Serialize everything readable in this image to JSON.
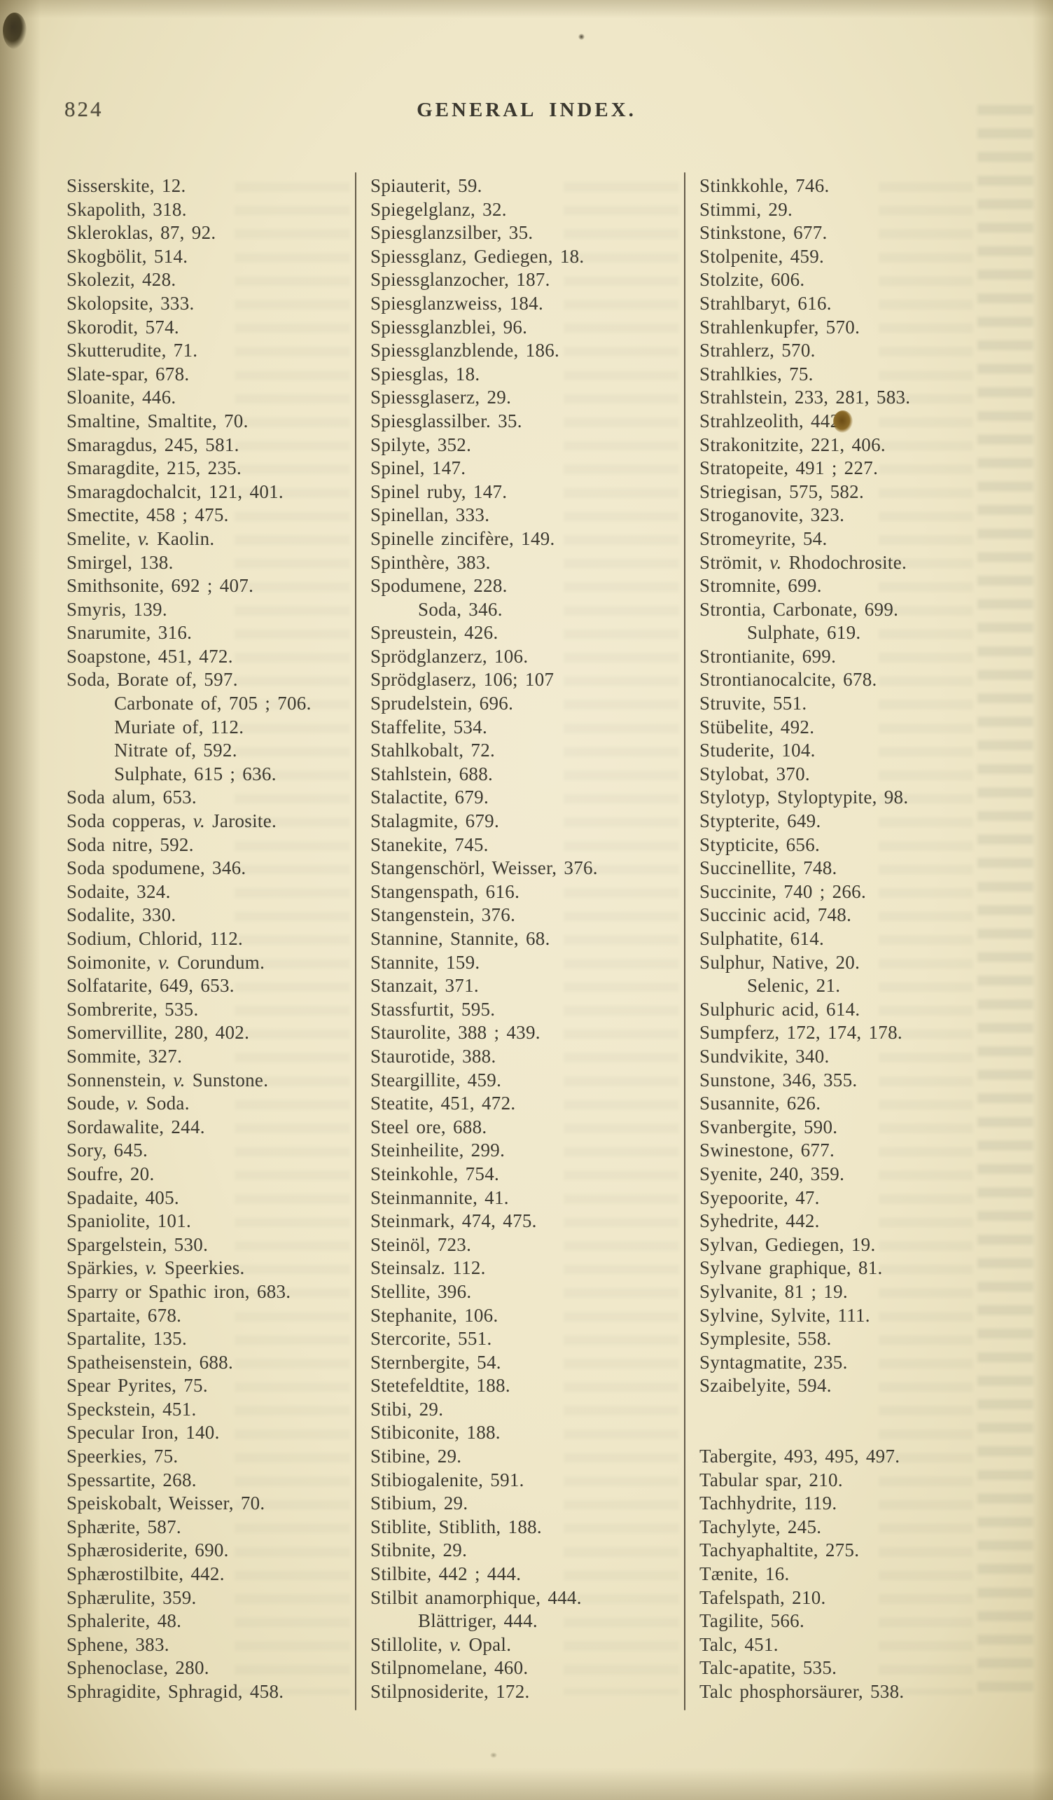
{
  "page": {
    "number": "824",
    "header": "GENERAL INDEX."
  },
  "columns": [
    {
      "entries": [
        {
          "t": "Sisserskite, 12."
        },
        {
          "t": "Skapolith, 318."
        },
        {
          "t": "Skleroklas, 87, 92."
        },
        {
          "t": "Skogbölit, 514."
        },
        {
          "t": "Skolezit, 428."
        },
        {
          "t": "Skolopsite, 333."
        },
        {
          "t": "Skorodit, 574."
        },
        {
          "t": "Skutterudite, 71."
        },
        {
          "t": "Slate-spar, 678."
        },
        {
          "t": "Sloanite, 446."
        },
        {
          "t": "Smaltine, Smaltite, 70."
        },
        {
          "t": "Smaragdus, 245, 581."
        },
        {
          "t": "Smaragdite, 215, 235."
        },
        {
          "t": "Smaragdochalcit, 121, 401."
        },
        {
          "t": "Smectite, 458 ; 475."
        },
        {
          "t": "Smelite, v. Kaolin."
        },
        {
          "t": "Smirgel, 138."
        },
        {
          "t": "Smithsonite, 692 ; 407."
        },
        {
          "t": "Smyris, 139."
        },
        {
          "t": "Snarumite, 316."
        },
        {
          "t": "Soapstone, 451, 472."
        },
        {
          "t": "Soda, Borate of, 597."
        },
        {
          "t": "Carbonate of, 705 ; 706.",
          "ind": 1
        },
        {
          "t": "Muriate of, 112.",
          "ind": 1
        },
        {
          "t": "Nitrate of, 592.",
          "ind": 1
        },
        {
          "t": "Sulphate, 615 ; 636.",
          "ind": 1
        },
        {
          "t": "Soda alum, 653."
        },
        {
          "t": "Soda copperas, v. Jarosite."
        },
        {
          "t": "Soda nitre, 592."
        },
        {
          "t": "Soda spodumene, 346."
        },
        {
          "t": "Sodaite, 324."
        },
        {
          "t": "Sodalite, 330."
        },
        {
          "t": "Sodium, Chlorid, 112."
        },
        {
          "t": "Soimonite, v. Corundum."
        },
        {
          "t": "Solfatarite, 649, 653."
        },
        {
          "t": "Sombrerite, 535."
        },
        {
          "t": "Somervillite, 280, 402."
        },
        {
          "t": "Sommite, 327."
        },
        {
          "t": "Sonnenstein, v. Sunstone."
        },
        {
          "t": "Soude, v. Soda."
        },
        {
          "t": "Sordawalite, 244."
        },
        {
          "t": "Sory, 645."
        },
        {
          "t": "Soufre, 20."
        },
        {
          "t": "Spadaite, 405."
        },
        {
          "t": "Spaniolite, 101."
        },
        {
          "t": "Spargelstein, 530."
        },
        {
          "t": "Spärkies, v. Speerkies."
        },
        {
          "t": "Sparry or Spathic iron, 683."
        },
        {
          "t": "Spartaite, 678."
        },
        {
          "t": "Spartalite, 135."
        },
        {
          "t": "Spatheisenstein, 688."
        },
        {
          "t": "Spear Pyrites, 75."
        },
        {
          "t": "Speckstein, 451."
        },
        {
          "t": "Specular Iron, 140."
        },
        {
          "t": "Speerkies, 75."
        },
        {
          "t": "Spessartite, 268."
        },
        {
          "t": "Speiskobalt, Weisser, 70."
        },
        {
          "t": "Sphærite, 587."
        },
        {
          "t": "Sphærosiderite, 690."
        },
        {
          "t": "Sphærostilbite, 442."
        },
        {
          "t": "Sphærulite, 359."
        },
        {
          "t": "Sphalerite, 48."
        },
        {
          "t": "Sphene, 383."
        },
        {
          "t": "Sphenoclase, 280."
        },
        {
          "t": "Sphragidite, Sphragid, 458."
        }
      ]
    },
    {
      "entries": [
        {
          "t": "Spiauterit, 59."
        },
        {
          "t": "Spiegelglanz, 32."
        },
        {
          "t": "Spiesglanzsilber, 35."
        },
        {
          "t": "Spiessglanz, Gediegen, 18."
        },
        {
          "t": "Spiessglanzocher, 187."
        },
        {
          "t": "Spiesglanzweiss, 184."
        },
        {
          "t": "Spiessglanzblei, 96."
        },
        {
          "t": "Spiessglanzblende, 186."
        },
        {
          "t": "Spiesglas, 18."
        },
        {
          "t": "Spiessglaserz, 29."
        },
        {
          "t": "Spiesglassilber. 35."
        },
        {
          "t": "Spilyte, 352."
        },
        {
          "t": "Spinel, 147."
        },
        {
          "t": "Spinel ruby, 147."
        },
        {
          "t": "Spinellan, 333."
        },
        {
          "t": "Spinelle zincifère, 149."
        },
        {
          "t": "Spinthère, 383."
        },
        {
          "t": "Spodumene, 228."
        },
        {
          "t": "Soda, 346.",
          "ind": 1
        },
        {
          "t": "Spreustein, 426."
        },
        {
          "t": "Sprödglanzerz, 106."
        },
        {
          "t": "Sprödglaserz, 106; 107"
        },
        {
          "t": "Sprudelstein, 696."
        },
        {
          "t": "Staffelite, 534."
        },
        {
          "t": "Stahlkobalt, 72."
        },
        {
          "t": "Stahlstein, 688."
        },
        {
          "t": "Stalactite, 679."
        },
        {
          "t": "Stalagmite, 679."
        },
        {
          "t": "Stanekite, 745."
        },
        {
          "t": "Stangenschörl, Weisser, 376."
        },
        {
          "t": "Stangenspath, 616."
        },
        {
          "t": "Stangenstein, 376."
        },
        {
          "t": "Stannine, Stannite, 68."
        },
        {
          "t": "Stannite, 159."
        },
        {
          "t": "Stanzait, 371."
        },
        {
          "t": "Stassfurtit, 595."
        },
        {
          "t": "Staurolite, 388 ; 439."
        },
        {
          "t": "Staurotide, 388."
        },
        {
          "t": "Steargillite, 459."
        },
        {
          "t": "Steatite, 451, 472."
        },
        {
          "t": "Steel ore, 688."
        },
        {
          "t": "Steinheilite, 299."
        },
        {
          "t": "Steinkohle, 754."
        },
        {
          "t": "Steinmannite, 41."
        },
        {
          "t": "Steinmark, 474, 475."
        },
        {
          "t": "Steinöl, 723."
        },
        {
          "t": "Steinsalz. 112."
        },
        {
          "t": "Stellite, 396."
        },
        {
          "t": "Stephanite, 106."
        },
        {
          "t": "Stercorite, 551."
        },
        {
          "t": "Sternbergite, 54."
        },
        {
          "t": "Stetefeldtite, 188."
        },
        {
          "t": "Stibi, 29."
        },
        {
          "t": "Stibiconite, 188."
        },
        {
          "t": "Stibine, 29."
        },
        {
          "t": "Stibiogalenite, 591."
        },
        {
          "t": "Stibium, 29."
        },
        {
          "t": "Stiblite, Stiblith, 188."
        },
        {
          "t": "Stibnite, 29."
        },
        {
          "t": "Stilbite, 442 ; 444."
        },
        {
          "t": "Stilbit anamorphique, 444."
        },
        {
          "t": "Blättriger, 444.",
          "ind": 1
        },
        {
          "t": "Stillolite, v. Opal."
        },
        {
          "t": "Stilpnomelane, 460."
        },
        {
          "t": "Stilpnosiderite, 172."
        }
      ]
    },
    {
      "entries": [
        {
          "t": "Stinkkohle, 746."
        },
        {
          "t": "Stimmi, 29."
        },
        {
          "t": "Stinkstone, 677."
        },
        {
          "t": "Stolpenite, 459."
        },
        {
          "t": "Stolzite, 606."
        },
        {
          "t": "Strahlbaryt, 616."
        },
        {
          "t": "Strahlenkupfer, 570."
        },
        {
          "t": "Strahlerz, 570."
        },
        {
          "t": "Strahlkies, 75."
        },
        {
          "t": "Strahlstein, 233, 281, 583."
        },
        {
          "t": "Strahlzeolith, 442.",
          "blot": true
        },
        {
          "t": "Strakonitzite, 221, 406."
        },
        {
          "t": "Stratopeite, 491 ; 227."
        },
        {
          "t": "Striegisan, 575, 582."
        },
        {
          "t": "Stroganovite, 323."
        },
        {
          "t": "Stromeyrite, 54."
        },
        {
          "t": "Strömit, v. Rhodochrosite."
        },
        {
          "t": "Stromnite, 699."
        },
        {
          "t": "Strontia, Carbonate, 699."
        },
        {
          "t": "Sulphate, 619.",
          "ind": 1
        },
        {
          "t": "Strontianite, 699."
        },
        {
          "t": "Strontianocalcite, 678."
        },
        {
          "t": "Struvite, 551."
        },
        {
          "t": "Stübelite, 492."
        },
        {
          "t": "Studerite, 104."
        },
        {
          "t": "Stylobat, 370."
        },
        {
          "t": "Stylotyp, Styloptypite, 98."
        },
        {
          "t": "Stypterite, 649."
        },
        {
          "t": "Stypticite, 656."
        },
        {
          "t": "Succinellite, 748."
        },
        {
          "t": "Succinite, 740 ; 266."
        },
        {
          "t": "Succinic acid, 748."
        },
        {
          "t": "Sulphatite, 614."
        },
        {
          "t": "Sulphur, Native, 20."
        },
        {
          "t": "Selenic, 21.",
          "ind": 1
        },
        {
          "t": "Sulphuric acid, 614."
        },
        {
          "t": "Sumpferz, 172, 174, 178."
        },
        {
          "t": "Sundvikite, 340."
        },
        {
          "t": "Sunstone, 346, 355."
        },
        {
          "t": "Susannite, 626."
        },
        {
          "t": "Svanbergite, 590."
        },
        {
          "t": "Swinestone, 677."
        },
        {
          "t": "Syenite, 240, 359."
        },
        {
          "t": "Syepoorite, 47."
        },
        {
          "t": "Syhedrite, 442."
        },
        {
          "t": "Sylvan, Gediegen, 19."
        },
        {
          "t": "Sylvane graphique, 81."
        },
        {
          "t": "Sylvanite, 81 ; 19."
        },
        {
          "t": "Sylvine, Sylvite, 111."
        },
        {
          "t": "Symplesite, 558."
        },
        {
          "t": "Syntagmatite, 235."
        },
        {
          "t": "Szaibelyite, 594."
        },
        {
          "t": "Tabergite, 493, 495, 497.",
          "gap": 2
        },
        {
          "t": "Tabular spar, 210."
        },
        {
          "t": "Tachhydrite, 119."
        },
        {
          "t": "Tachylyte, 245."
        },
        {
          "t": "Tachyaphaltite, 275."
        },
        {
          "t": "Tænite, 16."
        },
        {
          "t": "Tafelspath, 210."
        },
        {
          "t": "Tagilite, 566."
        },
        {
          "t": "Talc, 451."
        },
        {
          "t": "Talc-apatite, 535."
        },
        {
          "t": "Talc phosphorsäurer, 538."
        }
      ]
    }
  ]
}
